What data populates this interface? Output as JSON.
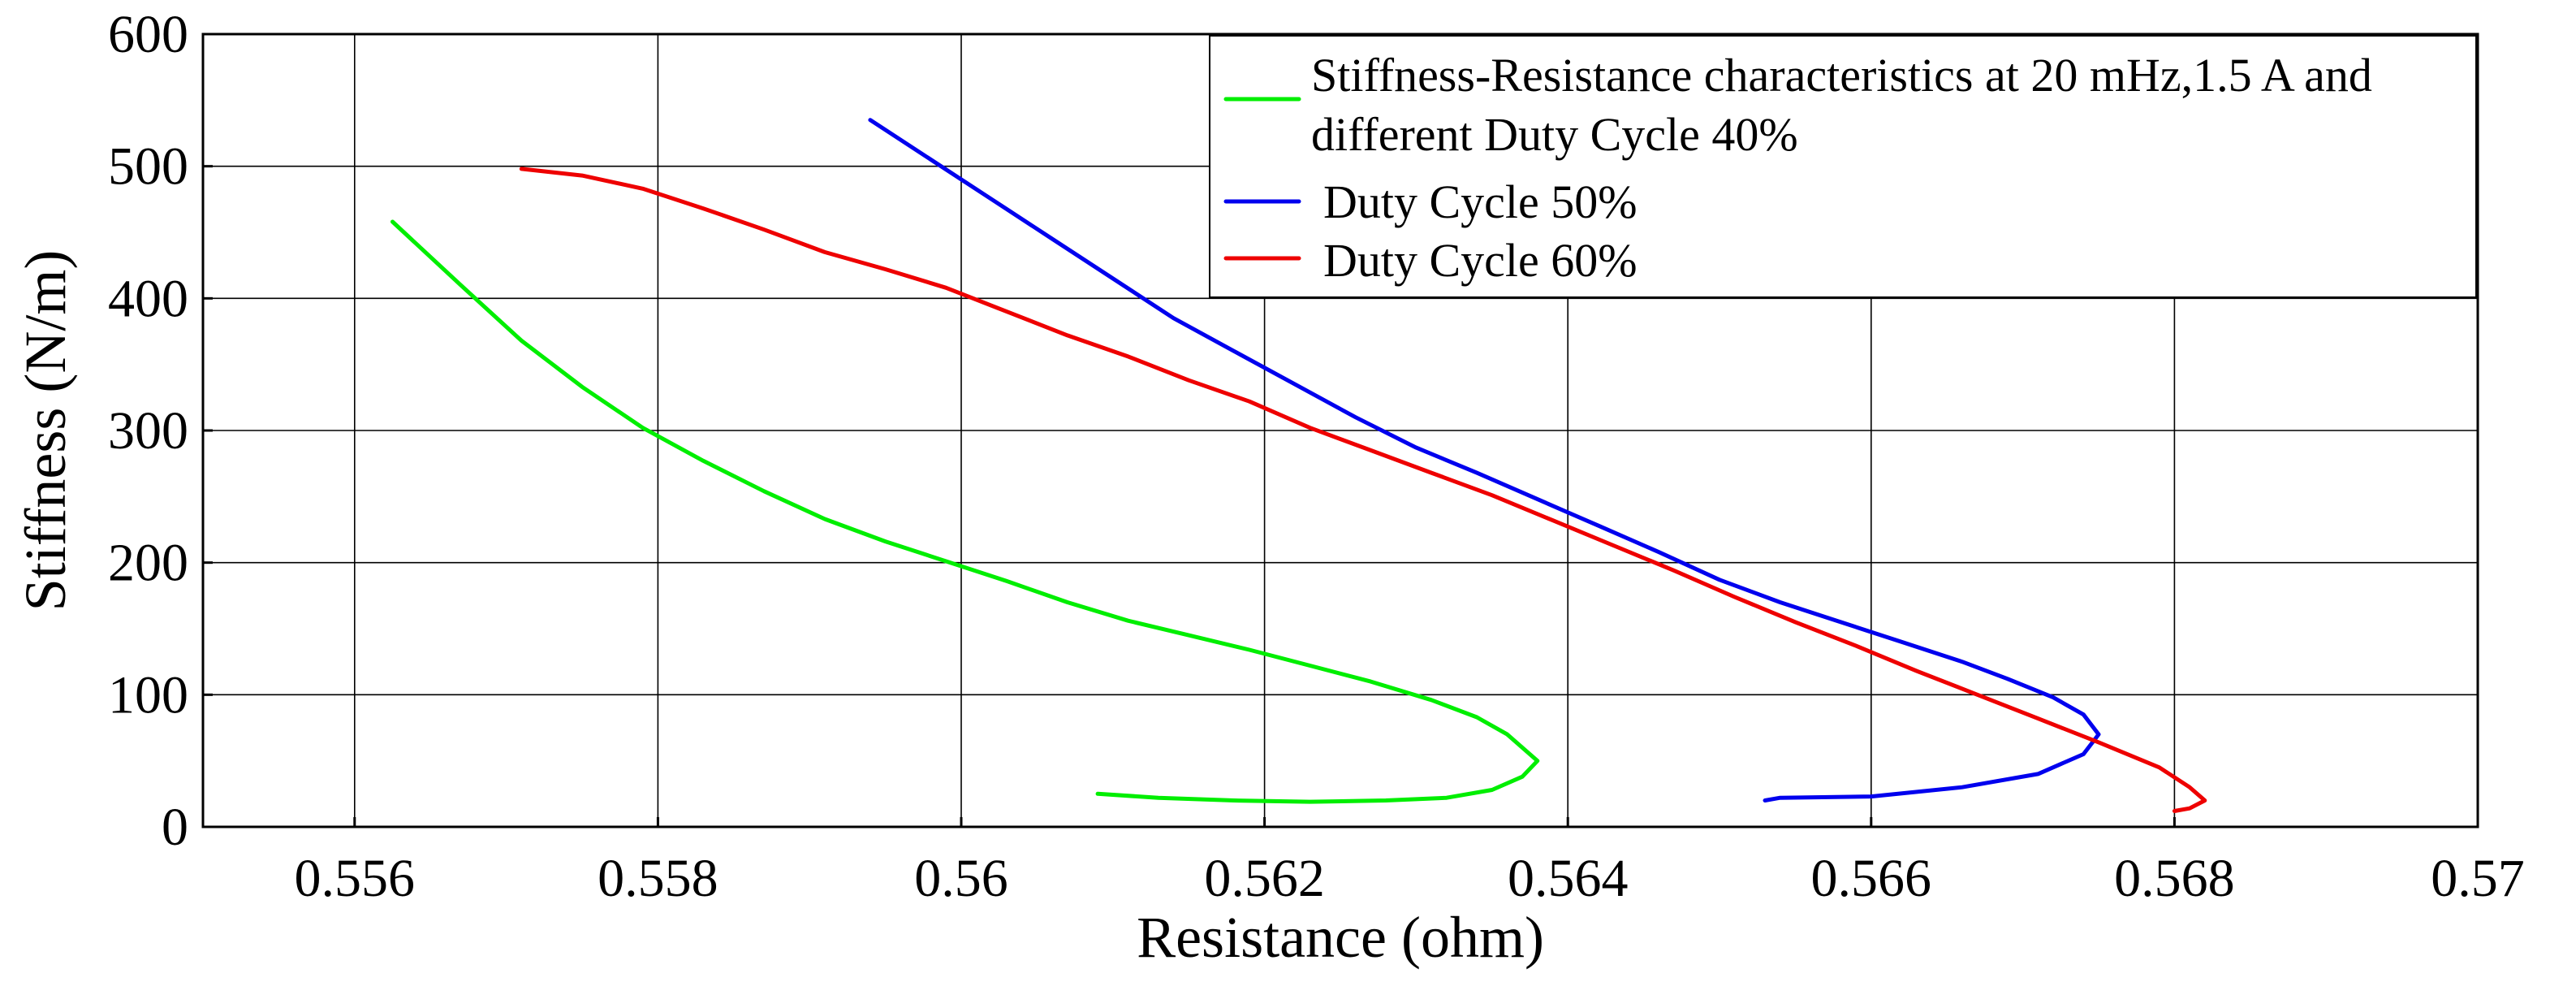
{
  "chart_data": {
    "type": "line",
    "title": "",
    "xlabel": "Resistance (ohm)",
    "ylabel": "Stiffness (N/m)",
    "xlim": [
      0.555,
      0.57
    ],
    "ylim": [
      0,
      600
    ],
    "grid": true,
    "legend_position": "top-right",
    "xticks": [
      0.556,
      0.558,
      0.56,
      0.562,
      0.564,
      0.566,
      0.568,
      0.57
    ],
    "xtick_labels": [
      "0.556",
      "0.558",
      "0.56",
      "0.562",
      "0.564",
      "0.566",
      "0.568",
      "0.57"
    ],
    "yticks": [
      0,
      100,
      200,
      300,
      400,
      500,
      600
    ],
    "ytick_labels": [
      "0",
      "100",
      "200",
      "300",
      "400",
      "500",
      "600"
    ],
    "series": [
      {
        "name": "Duty Cycle 40%",
        "legend_lines": [
          "Stiffness-Resistance characteristics at 20 mHz,1.5 A and",
          "different Duty Cycle 40%"
        ],
        "color": "#00ee00",
        "x": [
          0.55625,
          0.5567,
          0.5571,
          0.5575,
          0.5579,
          0.5583,
          0.5587,
          0.5591,
          0.5595,
          0.5599,
          0.5603,
          0.5607,
          0.5611,
          0.5615,
          0.5619,
          0.5623,
          0.5627,
          0.5631,
          0.5634,
          0.5636,
          0.5638,
          0.5637,
          0.5635,
          0.5632,
          0.5628,
          0.5623,
          0.5618,
          0.5613,
          0.5609
        ],
        "y": [
          458,
          410,
          368,
          333,
          302,
          277,
          254,
          233,
          216,
          201,
          186,
          170,
          156,
          145,
          134,
          122,
          110,
          96,
          83,
          70,
          50,
          38,
          28,
          22,
          20,
          19,
          20,
          22,
          25
        ]
      },
      {
        "name": "Duty Cycle 50%",
        "legend_lines": [
          "Duty Cycle 50%"
        ],
        "color": "#0000ee",
        "x": [
          0.5594,
          0.5598,
          0.5602,
          0.5606,
          0.561,
          0.5614,
          0.5618,
          0.5622,
          0.5626,
          0.563,
          0.5634,
          0.5638,
          0.5642,
          0.5646,
          0.565,
          0.5654,
          0.5658,
          0.5662,
          0.5666,
          0.5669,
          0.5672,
          0.5674,
          0.5675,
          0.5674,
          0.5671,
          0.5666,
          0.566,
          0.5654,
          0.5653
        ],
        "y": [
          535,
          505,
          475,
          445,
          415,
          385,
          360,
          335,
          310,
          287,
          268,
          248,
          228,
          208,
          187,
          170,
          155,
          140,
          125,
          112,
          98,
          85,
          70,
          55,
          40,
          30,
          23,
          22,
          20
        ]
      },
      {
        "name": "Duty Cycle 60%",
        "legend_lines": [
          "Duty Cycle 60%"
        ],
        "color": "#ee0000",
        "x": [
          0.5571,
          0.5575,
          0.5579,
          0.5583,
          0.5587,
          0.5591,
          0.5595,
          0.5599,
          0.5603,
          0.5607,
          0.5611,
          0.5615,
          0.5619,
          0.5623,
          0.5627,
          0.5631,
          0.5635,
          0.5639,
          0.5643,
          0.5647,
          0.5651,
          0.5655,
          0.5659,
          0.5663,
          0.5667,
          0.5671,
          0.5675,
          0.5679,
          0.5681,
          0.5682,
          0.5681,
          0.568
        ],
        "y": [
          498,
          493,
          483,
          468,
          452,
          435,
          422,
          408,
          390,
          372,
          356,
          338,
          322,
          302,
          285,
          268,
          251,
          232,
          213,
          194,
          174,
          155,
          137,
          118,
          100,
          82,
          64,
          45,
          30,
          20,
          14,
          12
        ]
      }
    ]
  }
}
